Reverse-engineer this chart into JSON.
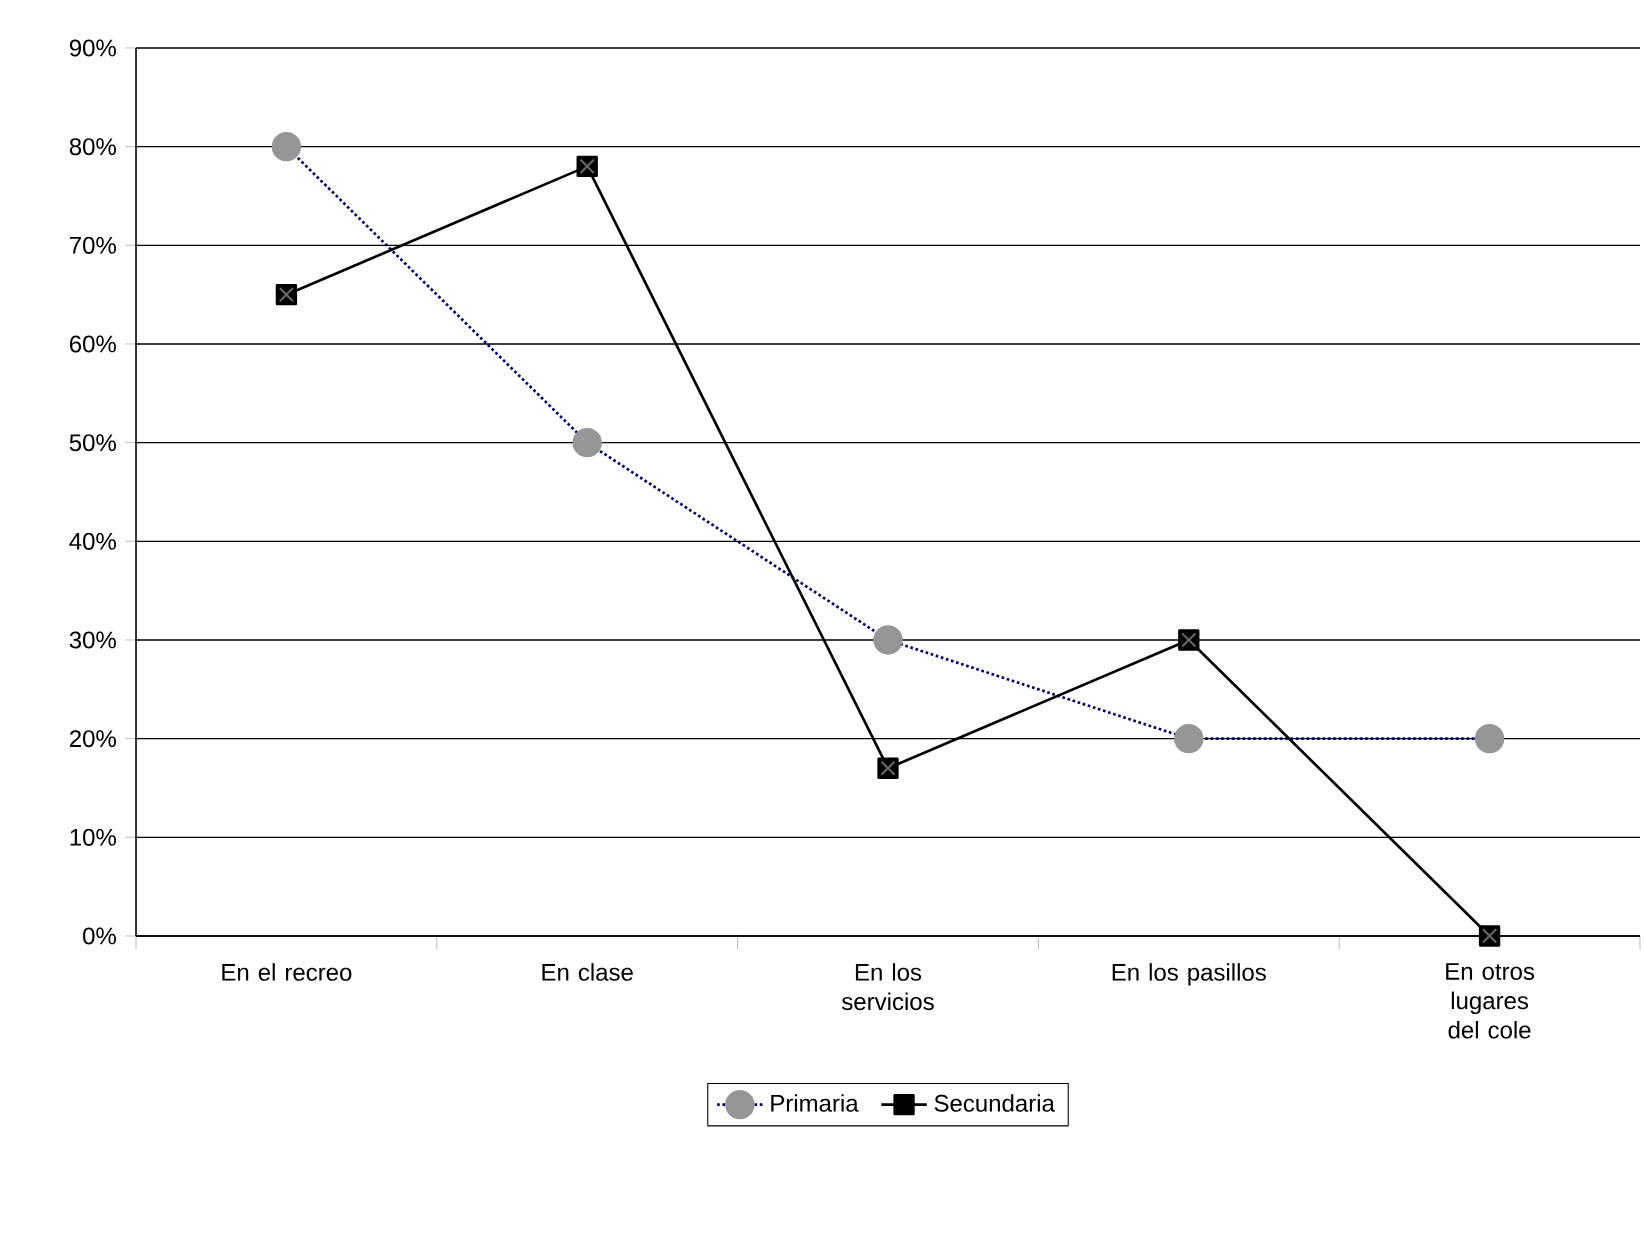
{
  "chart_data": {
    "type": "line",
    "categories": [
      "En el recreo",
      "En clase",
      "En los servicios",
      "En los pasillos",
      "En otros lugares del cole"
    ],
    "series": [
      {
        "name": "Primaria",
        "color": "#969696",
        "values": [
          80,
          50,
          30,
          20,
          20
        ],
        "marker": "circle",
        "line_style": "dotted"
      },
      {
        "name": "Secundaria",
        "color": "#000000",
        "values": [
          65,
          78,
          17,
          30,
          0
        ],
        "marker": "square",
        "line_style": "solid"
      }
    ],
    "ylim": [
      0,
      90
    ],
    "yticks": [
      {
        "value": 0,
        "label": "0%"
      },
      {
        "value": 10,
        "label": "10%"
      },
      {
        "value": 20,
        "label": "20%"
      },
      {
        "value": 30,
        "label": "30%"
      },
      {
        "value": 40,
        "label": "40%"
      },
      {
        "value": 50,
        "label": "50%"
      },
      {
        "value": 60,
        "label": "60%"
      },
      {
        "value": 70,
        "label": "70%"
      },
      {
        "value": 80,
        "label": "80%"
      },
      {
        "value": 90,
        "label": "90%"
      }
    ],
    "grid": "y",
    "legend": "bottom"
  }
}
